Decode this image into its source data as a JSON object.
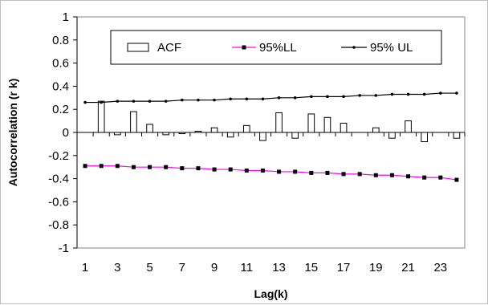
{
  "chart_data": {
    "type": "bar",
    "xlabel": "Lag(k)",
    "ylabel": "Autocorrelation (r k)",
    "ylim": [
      -1,
      1
    ],
    "yticks": [
      "1",
      "0.8",
      "0.6",
      "0.4",
      "0.2",
      "0",
      "-0.2",
      "-0.4",
      "-0.6",
      "-0.8",
      "-1"
    ],
    "xtick_labels": [
      "1",
      "3",
      "5",
      "7",
      "9",
      "11",
      "13",
      "15",
      "17",
      "19",
      "21",
      "23"
    ],
    "legend_position": "top-center",
    "x": [
      1,
      2,
      3,
      4,
      5,
      6,
      7,
      8,
      9,
      10,
      11,
      12,
      13,
      14,
      15,
      16,
      17,
      18,
      19,
      20,
      21,
      22,
      23,
      24
    ],
    "series": [
      {
        "name": "ACF",
        "kind": "bar",
        "color": "#ffffff",
        "values": [
          0.0,
          0.27,
          -0.02,
          0.18,
          0.07,
          -0.02,
          -0.01,
          0.01,
          0.04,
          -0.04,
          0.06,
          -0.07,
          0.17,
          -0.05,
          0.16,
          0.13,
          0.08,
          0.0,
          0.04,
          -0.05,
          0.1,
          -0.08,
          0.0,
          -0.05
        ]
      },
      {
        "name": "95%LL",
        "kind": "line-square",
        "color": "#ff00ff",
        "values": [
          -0.29,
          -0.29,
          -0.29,
          -0.3,
          -0.3,
          -0.3,
          -0.31,
          -0.31,
          -0.32,
          -0.32,
          -0.33,
          -0.33,
          -0.34,
          -0.34,
          -0.35,
          -0.35,
          -0.36,
          -0.36,
          -0.37,
          -0.37,
          -0.38,
          -0.39,
          -0.39,
          -0.41
        ]
      },
      {
        "name": "95% UL",
        "kind": "line-dot",
        "color": "#000000",
        "values": [
          0.26,
          0.26,
          0.27,
          0.27,
          0.27,
          0.27,
          0.28,
          0.28,
          0.28,
          0.29,
          0.29,
          0.29,
          0.3,
          0.3,
          0.31,
          0.31,
          0.31,
          0.32,
          0.32,
          0.33,
          0.33,
          0.33,
          0.34,
          0.34
        ]
      }
    ]
  }
}
